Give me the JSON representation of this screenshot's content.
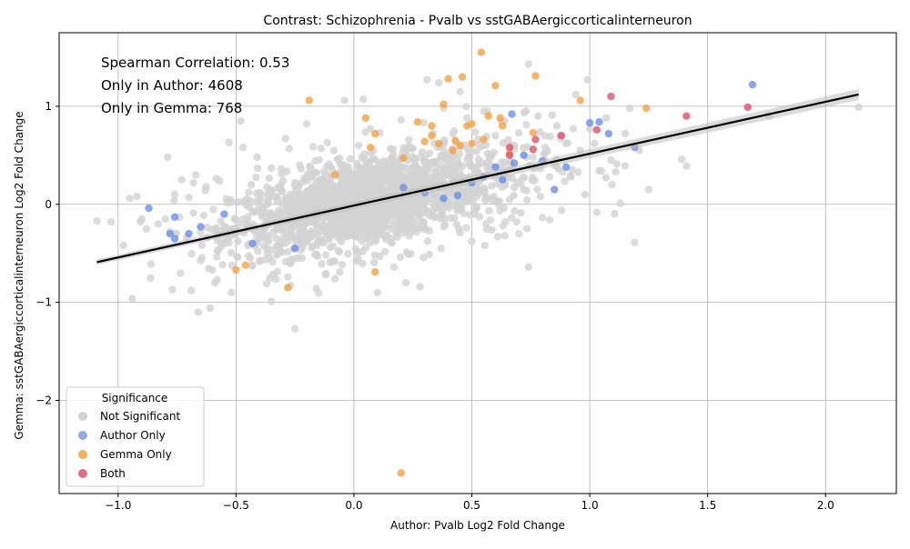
{
  "chart_data": {
    "type": "scatter",
    "title": "Contrast: Schizophrenia - Pvalb vs sstGABAergiccorticalinterneuron",
    "xlabel": "Author: Pvalb Log2 Fold Change",
    "ylabel": "Gemma: sstGABAergiccorticalinterneuron Log2 Fold Change",
    "xlim": [
      -1.25,
      2.3
    ],
    "ylim": [
      -2.95,
      1.75
    ],
    "x_ticks": [
      -1.0,
      -0.5,
      0.0,
      0.5,
      1.0,
      1.5,
      2.0
    ],
    "x_tick_labels": [
      "−1.0",
      "−0.5",
      "0.0",
      "0.5",
      "1.0",
      "1.5",
      "2.0"
    ],
    "y_ticks": [
      -2,
      -1,
      0,
      1
    ],
    "y_tick_labels": [
      "−2",
      "−1",
      "0",
      "1"
    ],
    "grid": true,
    "annotations": [
      "Spearman Correlation: 0.53",
      "Only in Author: 4608",
      "Only in Gemma: 768"
    ],
    "legend": {
      "title": "Significance",
      "placement": "lower-left",
      "entries": [
        "Not Significant",
        "Author Only",
        "Gemma Only",
        "Both"
      ]
    },
    "regression_line": {
      "x": [
        -1.09,
        2.14
      ],
      "y": [
        -0.59,
        1.12
      ],
      "color": "#000000"
    },
    "colors": {
      "Not Significant": "#d3d3d3",
      "Author Only": "#6b8ee6",
      "Gemma Only": "#f5a142",
      "Both": "#d9546e"
    },
    "series": [
      {
        "name": "Not Significant",
        "color": "#d3d3d3",
        "points": [
          [
            -1.09,
            -0.17
          ],
          [
            -1.03,
            -0.18
          ],
          [
            -0.95,
            0.06
          ],
          [
            -0.94,
            -0.96
          ],
          [
            -0.92,
            0.08
          ],
          [
            -0.9,
            -0.15
          ],
          [
            -0.88,
            -0.25
          ],
          [
            -0.86,
            -0.61
          ],
          [
            -0.83,
            -0.2
          ],
          [
            -0.8,
            -0.15
          ],
          [
            -0.79,
            0.48
          ],
          [
            -0.77,
            -0.87
          ],
          [
            -0.76,
            0.1
          ],
          [
            -0.73,
            0.25
          ],
          [
            -0.71,
            -0.34
          ],
          [
            -0.7,
            0.07
          ],
          [
            -0.69,
            -0.88
          ],
          [
            -0.68,
            0.22
          ],
          [
            -0.67,
            0.3
          ],
          [
            -0.66,
            -1.1
          ],
          [
            -0.65,
            -0.29
          ],
          [
            -0.63,
            0.14
          ],
          [
            -0.61,
            -1.06
          ],
          [
            -0.6,
            -0.67
          ],
          [
            -0.58,
            -0.77
          ],
          [
            -0.57,
            0.24
          ],
          [
            -0.55,
            -0.4
          ],
          [
            -0.53,
            0.63
          ],
          [
            -0.52,
            -0.9
          ],
          [
            -0.5,
            -0.3
          ],
          [
            -0.48,
            0.85
          ],
          [
            -0.47,
            0.58
          ],
          [
            -0.45,
            -0.42
          ],
          [
            -0.43,
            -0.62
          ],
          [
            -0.41,
            0.48
          ],
          [
            -0.39,
            0.1
          ],
          [
            -0.37,
            -0.81
          ],
          [
            -0.35,
            0.37
          ],
          [
            -0.33,
            -0.43
          ],
          [
            -0.31,
            0.2
          ],
          [
            -0.3,
            -0.35
          ],
          [
            -0.29,
            0.67
          ],
          [
            -0.28,
            -0.74
          ],
          [
            -0.26,
            -0.18
          ],
          [
            -0.25,
            -1.27
          ],
          [
            -0.23,
            0.4
          ],
          [
            -0.22,
            -0.55
          ],
          [
            -0.2,
            0.82
          ],
          [
            -0.19,
            -0.06
          ],
          [
            -0.18,
            0.29
          ],
          [
            -0.16,
            -0.86
          ],
          [
            -0.14,
            0.57
          ],
          [
            -0.13,
            -0.21
          ],
          [
            -0.12,
            0.13
          ],
          [
            -0.1,
            -0.44
          ],
          [
            -0.09,
            0.34
          ],
          [
            -0.08,
            -0.76
          ],
          [
            -0.07,
            0.46
          ],
          [
            -0.05,
            -0.07
          ],
          [
            -0.04,
            1.06
          ],
          [
            -0.03,
            0.27
          ],
          [
            -0.02,
            -0.32
          ],
          [
            0.0,
            0.19
          ],
          [
            0.01,
            -0.58
          ],
          [
            0.02,
            0.6
          ],
          [
            0.03,
            -0.12
          ],
          [
            0.04,
            1.07
          ],
          [
            0.06,
            0.41
          ],
          [
            0.07,
            -0.39
          ],
          [
            0.08,
            0.05
          ],
          [
            0.1,
            -0.9
          ],
          [
            0.11,
            0.73
          ],
          [
            0.13,
            -0.23
          ],
          [
            0.15,
            0.35
          ],
          [
            0.17,
            -0.64
          ],
          [
            0.18,
            0.21
          ],
          [
            0.2,
            0.86
          ],
          [
            0.21,
            -0.09
          ],
          [
            0.23,
            -0.51
          ],
          [
            0.25,
            0.57
          ],
          [
            0.26,
            0.14
          ],
          [
            0.28,
            -0.84
          ],
          [
            0.29,
            0.29
          ],
          [
            0.31,
            1.27
          ],
          [
            0.32,
            -0.27
          ],
          [
            0.34,
            0.62
          ],
          [
            0.35,
            0.08
          ],
          [
            0.37,
            -0.45
          ],
          [
            0.38,
            0.98
          ],
          [
            0.4,
            0.32
          ],
          [
            0.41,
            -0.14
          ],
          [
            0.42,
            0.72
          ],
          [
            0.44,
            0.45
          ],
          [
            0.45,
            -0.29
          ],
          [
            0.47,
            0.22
          ],
          [
            0.48,
            0.88
          ],
          [
            0.5,
            -0.38
          ],
          [
            0.52,
            0.54
          ],
          [
            0.53,
            0.12
          ],
          [
            0.55,
            0.95
          ],
          [
            0.56,
            -0.2
          ],
          [
            0.58,
            0.4
          ],
          [
            0.6,
            0.7
          ],
          [
            0.61,
            -0.33
          ],
          [
            0.63,
            0.27
          ],
          [
            0.64,
            0.85
          ],
          [
            0.66,
            0.05
          ],
          [
            0.68,
            0.6
          ],
          [
            0.7,
            -0.3
          ],
          [
            0.72,
            0.15
          ],
          [
            0.73,
            0.95
          ],
          [
            0.74,
            -0.64
          ],
          [
            0.76,
            0.48
          ],
          [
            0.78,
            0.9
          ],
          [
            0.79,
            0.08
          ],
          [
            0.81,
            0.7
          ],
          [
            0.83,
            -0.16
          ],
          [
            0.85,
            0.4
          ],
          [
            0.86,
            0.8
          ],
          [
            0.88,
            -0.06
          ],
          [
            0.9,
            0.62
          ],
          [
            0.92,
            0.28
          ],
          [
            0.94,
            1.12
          ],
          [
            0.96,
            0.55
          ],
          [
            0.98,
            0.1
          ],
          [
            1.0,
            0.77
          ],
          [
            1.02,
            0.62
          ],
          [
            1.03,
            -0.08
          ],
          [
            1.05,
            0.34
          ],
          [
            1.07,
            0.88
          ],
          [
            1.09,
            0.45
          ],
          [
            1.11,
            0.33
          ],
          [
            1.13,
            0.01
          ],
          [
            1.15,
            0.72
          ],
          [
            1.17,
            0.98
          ],
          [
            1.19,
            -0.39
          ],
          [
            1.21,
            0.55
          ],
          [
            1.25,
            0.15
          ],
          [
            1.39,
            0.46
          ],
          [
            1.41,
            0.39
          ],
          [
            1.76,
            0.9
          ],
          [
            2.14,
            0.99
          ],
          [
            0.74,
            1.43
          ],
          [
            0.99,
            1.27
          ],
          [
            0.93,
            0.77
          ],
          [
            0.86,
            0.46
          ],
          [
            0.45,
            1.15
          ],
          [
            0.36,
            1.24
          ],
          [
            0.22,
            -0.8
          ],
          [
            0.11,
            -0.53
          ],
          [
            -0.06,
            -0.69
          ],
          [
            -0.35,
            -0.99
          ],
          [
            -0.12,
            -0.72
          ],
          [
            0.58,
            -0.16
          ],
          [
            0.64,
            -0.32
          ],
          [
            0.69,
            -0.18
          ]
        ],
        "cloud": [
          {
            "cx": 0.0,
            "cy": 0.0,
            "sx": 0.26,
            "sy": 0.24,
            "rho": 0.5,
            "n": 1200
          },
          {
            "cx": 0.2,
            "cy": 0.1,
            "sx": 0.32,
            "sy": 0.3,
            "rho": 0.45,
            "n": 600
          }
        ]
      },
      {
        "name": "Author Only",
        "color": "#6b8ee6",
        "points": [
          [
            -0.87,
            -0.04
          ],
          [
            -0.78,
            -0.3
          ],
          [
            -0.76,
            -0.35
          ],
          [
            -0.76,
            -0.13
          ],
          [
            -0.7,
            -0.3
          ],
          [
            -0.65,
            -0.23
          ],
          [
            -0.55,
            -0.1
          ],
          [
            -0.43,
            -0.4
          ],
          [
            -0.25,
            -0.45
          ],
          [
            0.21,
            0.17
          ],
          [
            0.3,
            0.12
          ],
          [
            0.38,
            0.06
          ],
          [
            0.44,
            0.09
          ],
          [
            0.5,
            0.22
          ],
          [
            0.55,
            0.28
          ],
          [
            0.6,
            0.38
          ],
          [
            0.63,
            0.25
          ],
          [
            0.67,
            0.92
          ],
          [
            0.68,
            0.42
          ],
          [
            0.72,
            0.5
          ],
          [
            0.8,
            0.44
          ],
          [
            0.85,
            0.15
          ],
          [
            0.9,
            0.38
          ],
          [
            1.0,
            0.83
          ],
          [
            1.04,
            0.84
          ],
          [
            1.08,
            0.72
          ],
          [
            1.19,
            0.58
          ],
          [
            1.69,
            1.22
          ]
        ]
      },
      {
        "name": "Gemma Only",
        "color": "#f5a142",
        "points": [
          [
            -0.5,
            -0.67
          ],
          [
            -0.46,
            -0.62
          ],
          [
            -0.28,
            -0.85
          ],
          [
            -0.19,
            1.06
          ],
          [
            -0.08,
            0.3
          ],
          [
            0.05,
            0.88
          ],
          [
            0.07,
            0.58
          ],
          [
            0.09,
            -0.69
          ],
          [
            0.09,
            0.72
          ],
          [
            0.2,
            -2.74
          ],
          [
            0.21,
            0.47
          ],
          [
            0.27,
            0.84
          ],
          [
            0.3,
            0.64
          ],
          [
            0.33,
            0.8
          ],
          [
            0.33,
            0.7
          ],
          [
            0.36,
            0.62
          ],
          [
            0.38,
            1.02
          ],
          [
            0.4,
            1.28
          ],
          [
            0.42,
            0.55
          ],
          [
            0.43,
            0.65
          ],
          [
            0.45,
            0.6
          ],
          [
            0.46,
            1.3
          ],
          [
            0.48,
            0.8
          ],
          [
            0.5,
            0.82
          ],
          [
            0.5,
            0.62
          ],
          [
            0.54,
            1.55
          ],
          [
            0.55,
            0.66
          ],
          [
            0.57,
            0.9
          ],
          [
            0.6,
            1.21
          ],
          [
            0.62,
            0.88
          ],
          [
            0.63,
            0.8
          ],
          [
            0.66,
            0.52
          ],
          [
            0.76,
            0.73
          ],
          [
            0.77,
            1.31
          ],
          [
            0.96,
            1.06
          ],
          [
            1.24,
            0.98
          ]
        ]
      },
      {
        "name": "Both",
        "color": "#d9546e",
        "points": [
          [
            0.66,
            0.58
          ],
          [
            0.66,
            0.5
          ],
          [
            0.76,
            0.56
          ],
          [
            0.77,
            0.66
          ],
          [
            0.88,
            0.7
          ],
          [
            1.03,
            0.76
          ],
          [
            1.09,
            1.1
          ],
          [
            1.41,
            0.9
          ],
          [
            1.67,
            0.99
          ]
        ]
      }
    ]
  }
}
